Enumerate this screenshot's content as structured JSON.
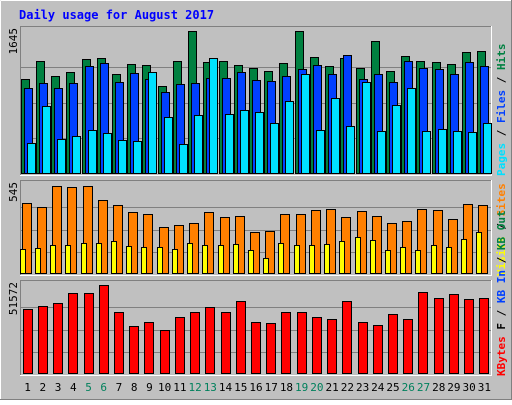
{
  "chart_data": {
    "type": "bar",
    "title": "Daily usage for August 2017",
    "colors": {
      "background": "#c0c0c0",
      "border_light": "#ffffff",
      "border_dark": "#808080",
      "title": "#0000ff",
      "gridline": "#808080",
      "hits": "#008040",
      "files": "#0040ff",
      "pages": "#00e0ff",
      "sites": "#ff8000",
      "visits": "#ffff00",
      "kbytes": "#ff0000",
      "weekend_label": "#00805c",
      "weekday_label": "#000000"
    },
    "categories": [
      "1",
      "2",
      "3",
      "4",
      "5",
      "6",
      "7",
      "8",
      "9",
      "10",
      "11",
      "12",
      "13",
      "14",
      "15",
      "16",
      "17",
      "18",
      "19",
      "20",
      "21",
      "22",
      "23",
      "24",
      "25",
      "26",
      "27",
      "28",
      "29",
      "30",
      "31"
    ],
    "weekend_days": [
      "5",
      "6",
      "12",
      "13",
      "19",
      "20",
      "26",
      "27"
    ],
    "panels": [
      {
        "id": "hits",
        "max_label": "1645",
        "ymax": 1645,
        "series": [
          {
            "name": "Hits",
            "color": "#008040",
            "values": [
              1095,
              1300,
              1125,
              1175,
              1320,
              1340,
              1150,
              1260,
              1250,
              1015,
              1305,
              1645,
              1285,
              1300,
              1255,
              1220,
              1190,
              1275,
              1640,
              1345,
              1240,
              1340,
              1225,
              1530,
              1180,
              1355,
              1300,
              1290,
              1260,
              1405,
              1420
            ]
          },
          {
            "name": "Files",
            "color": "#0040ff",
            "values": [
              985,
              1045,
              990,
              1045,
              1245,
              1275,
              1055,
              1165,
              1090,
              940,
              1035,
              1045,
              1100,
              1100,
              1170,
              1085,
              1070,
              1130,
              1210,
              1250,
              1155,
              1370,
              1090,
              1155,
              1060,
              1300,
              1225,
              1210,
              1150,
              1290,
              1240
            ]
          },
          {
            "name": "Pages",
            "color": "#00e0ff",
            "values": [
              360,
              785,
              400,
              435,
              510,
              470,
              395,
              380,
              1175,
              650,
              350,
              680,
              1330,
              690,
              735,
              715,
              590,
              845,
              1150,
              510,
              880,
              550,
              1060,
              500,
              790,
              995,
              500,
              515,
              495,
              485,
              585
            ]
          }
        ],
        "legend": [
          {
            "text": "Pages",
            "color": "#00e0ff"
          },
          {
            "text": " / ",
            "color": "#000000"
          },
          {
            "text": "Files",
            "color": "#0040ff"
          },
          {
            "text": " / ",
            "color": "#000000"
          },
          {
            "text": "Hits",
            "color": "#008040"
          }
        ]
      },
      {
        "id": "sites",
        "max_label": "545",
        "ymax": 545,
        "series": [
          {
            "name": "Sites",
            "color": "#ff8000",
            "values": [
              435,
              410,
              540,
              535,
              540,
              455,
              425,
              380,
              365,
              290,
              300,
              315,
              380,
              350,
              355,
              260,
              265,
              370,
              370,
              390,
              395,
              350,
              385,
              355,
              315,
              325,
              400,
              390,
              335,
              430,
              420
            ]
          },
          {
            "name": "Visits",
            "color": "#ffff00",
            "values": [
              155,
              160,
              175,
              175,
              190,
              190,
              200,
              170,
              165,
              165,
              155,
              190,
              180,
              180,
              185,
              150,
              95,
              190,
              180,
              175,
              185,
              205,
              225,
              210,
              150,
              165,
              150,
              175,
              165,
              215,
              255
            ]
          }
        ],
        "legend": [
          {
            "text": "Visits",
            "color": "#ffff00"
          },
          {
            "text": " / ",
            "color": "#000000"
          },
          {
            "text": "Sites",
            "color": "#ff8000"
          }
        ]
      },
      {
        "id": "kbytes",
        "max_label": "51572",
        "ymax": 51572,
        "series": [
          {
            "name": "KBytes",
            "color": "#ff0000",
            "values": [
              37770,
              39350,
              41410,
              47220,
              47060,
              51572,
              35800,
              27680,
              30080,
              25250,
              32880,
              35840,
              38720,
              36150,
              42160,
              29970,
              29530,
              35850,
              35910,
              32970,
              31810,
              42580,
              30370,
              28400,
              34720,
              32010,
              47500,
              44060,
              46300,
              43340,
              43800
            ]
          }
        ],
        "legend": [
          {
            "text": "KBytes",
            "color": "#ff0000"
          },
          {
            "text": " F / ",
            "color": "#000000"
          },
          {
            "text": "KB In",
            "color": "#0040ff"
          },
          {
            "text": " / ",
            "color": "#000000"
          },
          {
            "text": "KB Out",
            "color": "#008040"
          }
        ]
      }
    ]
  }
}
